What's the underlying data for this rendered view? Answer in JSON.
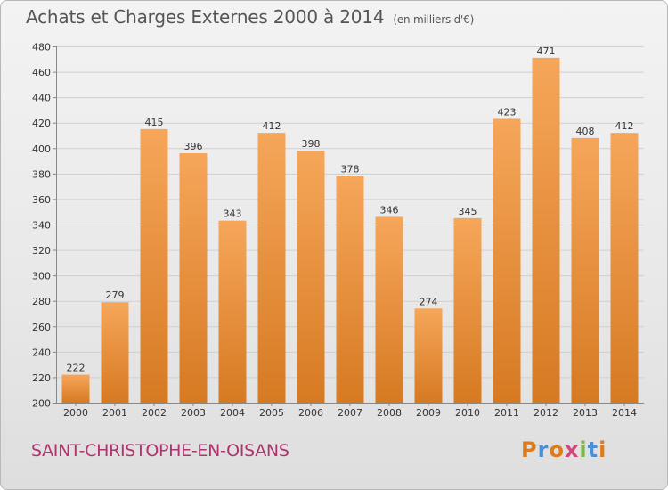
{
  "header": {
    "title": "Achats et Charges Externes 2000 à 2014",
    "unit": "(en milliers d'€)"
  },
  "footer": {
    "commune": "SAINT-CHRISTOPHE-EN-OISANS",
    "logo_letters": [
      "P",
      "r",
      "o",
      "x",
      "i",
      "t",
      "i"
    ],
    "logo_colors": [
      "#e07b1a",
      "#4a90d9",
      "#e07b1a",
      "#d2477a",
      "#7ab648",
      "#4a90d9",
      "#e07b1a"
    ]
  },
  "colors": {
    "bar_light": "#f6a65a",
    "bar_dark": "#d67a22",
    "grid": "#cfcfcf"
  },
  "chart_data": {
    "type": "bar",
    "title": "Achats et Charges Externes 2000 à 2014",
    "categories": [
      "2000",
      "2001",
      "2002",
      "2003",
      "2004",
      "2005",
      "2006",
      "2007",
      "2008",
      "2009",
      "2010",
      "2011",
      "2012",
      "2013",
      "2014"
    ],
    "values": [
      222,
      279,
      415,
      396,
      343,
      412,
      398,
      378,
      346,
      274,
      345,
      423,
      471,
      408,
      412
    ],
    "ylim": [
      200,
      480
    ],
    "yticks": [
      200,
      220,
      240,
      260,
      280,
      300,
      320,
      340,
      360,
      380,
      400,
      420,
      440,
      460,
      480
    ],
    "grid": true,
    "xlabel": "",
    "ylabel": ""
  }
}
